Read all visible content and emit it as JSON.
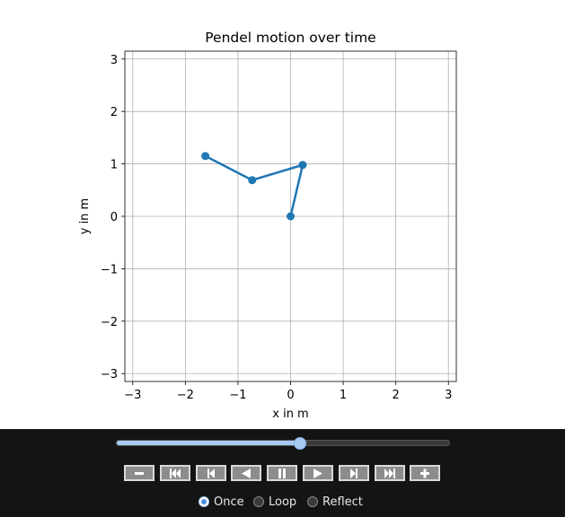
{
  "chart_data": {
    "type": "line",
    "title": "Pendel motion over time",
    "xlabel": "x in m",
    "ylabel": "y in m",
    "xlim": [
      -3.15,
      3.15
    ],
    "ylim": [
      -3.15,
      3.15
    ],
    "xticks": [
      -3,
      -2,
      -1,
      0,
      1,
      2,
      3
    ],
    "yticks": [
      -3,
      -2,
      -1,
      0,
      1,
      2,
      3
    ],
    "tick_labels": [
      "−3",
      "−2",
      "−1",
      "0",
      "1",
      "2",
      "3"
    ],
    "grid": true,
    "series": [
      {
        "x": [
          0,
          0.23,
          -0.73,
          -1.62
        ],
        "y": [
          0,
          0.98,
          0.69,
          1.15
        ],
        "color": "#1f77b4",
        "marker": "circle"
      }
    ]
  },
  "controls": {
    "slider_fraction": 0.55,
    "buttons": [
      "minus-icon",
      "skip-first-icon",
      "step-back-icon",
      "play-reverse-icon",
      "pause-icon",
      "play-icon",
      "step-forward-icon",
      "skip-last-icon",
      "plus-icon"
    ],
    "loop_modes": [
      "Once",
      "Loop",
      "Reflect"
    ],
    "selected_mode": "Once",
    "accent_color": "#a6c8f2",
    "panel_color": "#141414"
  }
}
